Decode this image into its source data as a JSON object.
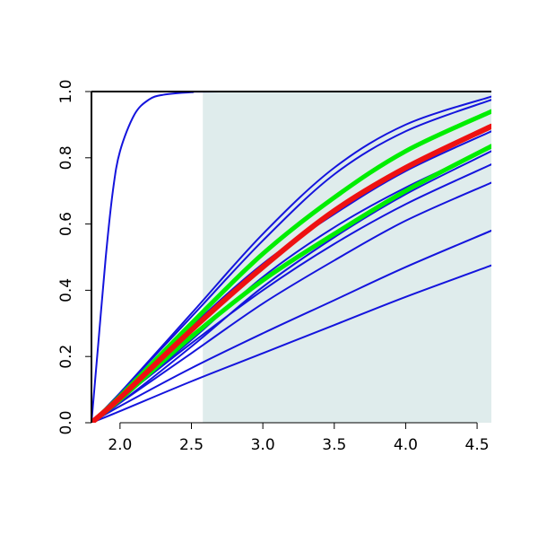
{
  "chart_data": {
    "type": "line",
    "title": "",
    "xlabel": "",
    "ylabel": "",
    "xlim": [
      1.8,
      4.6
    ],
    "ylim": [
      0.0,
      1.0
    ],
    "x_ticks": [
      2.0,
      2.5,
      3.0,
      3.5,
      4.0,
      4.5
    ],
    "x_tick_labels": [
      "2.0",
      "2.5",
      "3.0",
      "3.5",
      "4.0",
      "4.5"
    ],
    "y_ticks": [
      0.0,
      0.2,
      0.4,
      0.6,
      0.8,
      1.0
    ],
    "y_tick_labels": [
      "0.0",
      "0.2",
      "0.4",
      "0.6",
      "0.8",
      "1.0"
    ],
    "grid": false,
    "legend": "none",
    "shaded_region": {
      "x_from": 2.58,
      "x_to": 4.6,
      "color": "#dfecec"
    },
    "colors": {
      "blue": "#1414dd",
      "green": "#00ee00",
      "red": "#ee1111",
      "axis": "#000000"
    },
    "series": [
      {
        "color": "blue",
        "width": 2,
        "points": [
          [
            1.8,
            0.0
          ],
          [
            1.85,
            0.25
          ],
          [
            1.9,
            0.5
          ],
          [
            1.95,
            0.7
          ],
          [
            2.0,
            0.82
          ],
          [
            2.1,
            0.93
          ],
          [
            2.2,
            0.975
          ],
          [
            2.3,
            0.99
          ],
          [
            2.5,
            0.998
          ],
          [
            2.7,
            1.0
          ],
          [
            4.6,
            1.0
          ]
        ]
      },
      {
        "color": "blue",
        "width": 2,
        "points": [
          [
            1.8,
            0.0
          ],
          [
            2.0,
            0.09
          ],
          [
            2.5,
            0.33
          ],
          [
            3.0,
            0.57
          ],
          [
            3.5,
            0.77
          ],
          [
            4.0,
            0.9
          ],
          [
            4.6,
            0.985
          ]
        ]
      },
      {
        "color": "blue",
        "width": 2,
        "points": [
          [
            1.8,
            0.0
          ],
          [
            2.0,
            0.09
          ],
          [
            2.5,
            0.32
          ],
          [
            3.0,
            0.55
          ],
          [
            3.5,
            0.75
          ],
          [
            4.0,
            0.88
          ],
          [
            4.6,
            0.975
          ]
        ]
      },
      {
        "color": "blue",
        "width": 2,
        "points": [
          [
            1.8,
            0.0
          ],
          [
            2.0,
            0.08
          ],
          [
            2.5,
            0.29
          ],
          [
            3.0,
            0.48
          ],
          [
            3.5,
            0.63
          ],
          [
            4.0,
            0.76
          ],
          [
            4.6,
            0.88
          ]
        ]
      },
      {
        "color": "blue",
        "width": 2,
        "points": [
          [
            1.8,
            0.0
          ],
          [
            2.0,
            0.07
          ],
          [
            2.5,
            0.25
          ],
          [
            3.0,
            0.44
          ],
          [
            3.5,
            0.59
          ],
          [
            4.0,
            0.71
          ],
          [
            4.6,
            0.83
          ]
        ]
      },
      {
        "color": "blue",
        "width": 2,
        "points": [
          [
            1.8,
            0.0
          ],
          [
            2.0,
            0.06
          ],
          [
            2.5,
            0.23
          ],
          [
            3.0,
            0.41
          ],
          [
            3.5,
            0.56
          ],
          [
            4.0,
            0.69
          ],
          [
            4.6,
            0.82
          ]
        ]
      },
      {
        "color": "blue",
        "width": 2,
        "points": [
          [
            1.8,
            0.0
          ],
          [
            2.0,
            0.07
          ],
          [
            2.5,
            0.24
          ],
          [
            3.0,
            0.4
          ],
          [
            3.5,
            0.54
          ],
          [
            4.0,
            0.66
          ],
          [
            4.6,
            0.78
          ]
        ]
      },
      {
        "color": "blue",
        "width": 2,
        "points": [
          [
            1.8,
            0.0
          ],
          [
            2.0,
            0.06
          ],
          [
            2.5,
            0.21
          ],
          [
            3.0,
            0.36
          ],
          [
            3.5,
            0.49
          ],
          [
            4.0,
            0.61
          ],
          [
            4.6,
            0.725
          ]
        ]
      },
      {
        "color": "blue",
        "width": 2,
        "points": [
          [
            1.8,
            0.0
          ],
          [
            2.0,
            0.05
          ],
          [
            2.5,
            0.165
          ],
          [
            3.0,
            0.27
          ],
          [
            3.5,
            0.37
          ],
          [
            4.0,
            0.47
          ],
          [
            4.6,
            0.58
          ]
        ]
      },
      {
        "color": "blue",
        "width": 2,
        "points": [
          [
            1.8,
            0.0
          ],
          [
            2.0,
            0.035
          ],
          [
            2.5,
            0.125
          ],
          [
            3.0,
            0.21
          ],
          [
            3.5,
            0.295
          ],
          [
            4.0,
            0.38
          ],
          [
            4.6,
            0.475
          ]
        ]
      },
      {
        "color": "green",
        "width": 5,
        "points": [
          [
            1.8,
            0.0
          ],
          [
            2.0,
            0.08
          ],
          [
            2.5,
            0.3
          ],
          [
            3.0,
            0.51
          ],
          [
            3.5,
            0.68
          ],
          [
            4.0,
            0.82
          ],
          [
            4.6,
            0.94
          ]
        ]
      },
      {
        "color": "green",
        "width": 5,
        "points": [
          [
            1.8,
            0.0
          ],
          [
            2.0,
            0.07
          ],
          [
            2.5,
            0.26
          ],
          [
            3.0,
            0.43
          ],
          [
            3.5,
            0.57
          ],
          [
            4.0,
            0.7
          ],
          [
            4.6,
            0.835
          ]
        ]
      },
      {
        "color": "red",
        "width": 6,
        "points": [
          [
            1.8,
            0.0
          ],
          [
            2.0,
            0.075
          ],
          [
            2.5,
            0.28
          ],
          [
            3.0,
            0.47
          ],
          [
            3.5,
            0.64
          ],
          [
            4.0,
            0.77
          ],
          [
            4.6,
            0.895
          ]
        ]
      }
    ]
  }
}
